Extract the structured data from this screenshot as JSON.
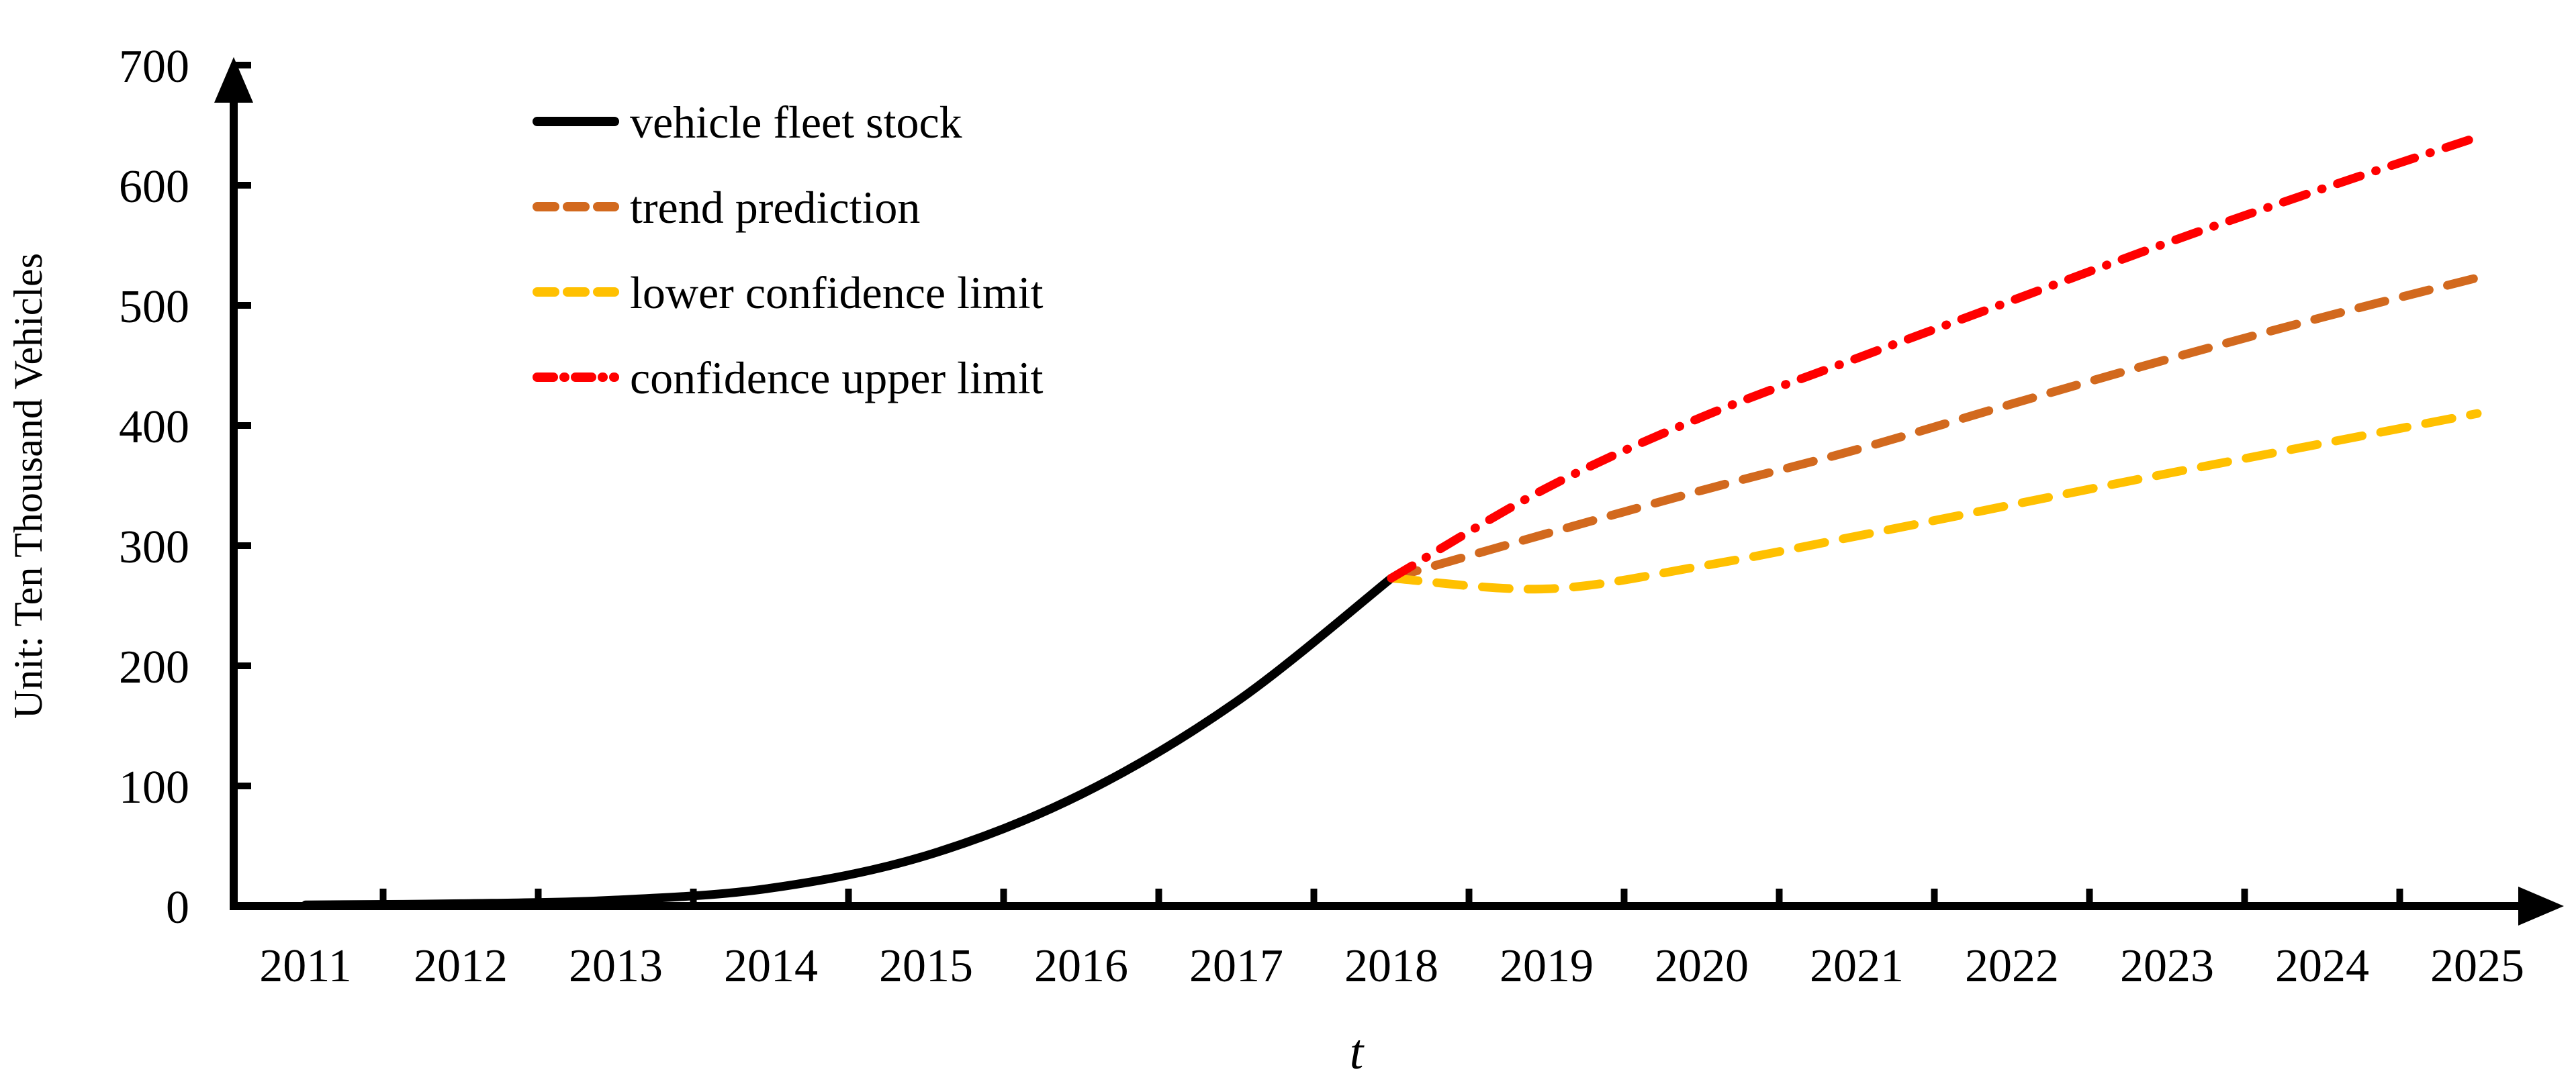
{
  "page": {
    "background_color": "#ffffff"
  },
  "chart_data": {
    "type": "line",
    "title": "",
    "xlabel": "t",
    "ylabel": "Unit:  Ten Thousand Vehicles",
    "x_categories": [
      "2011",
      "2012",
      "2013",
      "2014",
      "2015",
      "2016",
      "2017",
      "2018",
      "2019",
      "2020",
      "2021",
      "2022",
      "2023",
      "2024",
      "2025"
    ],
    "ylim": [
      0,
      700
    ],
    "y_tick_step": 100,
    "y_ticks": [
      0,
      100,
      200,
      300,
      400,
      500,
      600,
      700
    ],
    "grid": false,
    "legend_position": "upper-left-inside",
    "axis_color": "#000000",
    "series": [
      {
        "name": "vehicle fleet stock",
        "color": "#000000",
        "style": "solid",
        "x": [
          2011,
          2012,
          2013,
          2014,
          2015,
          2016,
          2017,
          2018
        ],
        "values": [
          1,
          2,
          5,
          15,
          42,
          93,
          170,
          273
        ]
      },
      {
        "name": "trend prediction",
        "color": "#D2691E",
        "style": "dashed",
        "x": [
          2018,
          2019,
          2020,
          2021,
          2022,
          2023,
          2024,
          2025
        ],
        "values": [
          273,
          310,
          346,
          380,
          418,
          455,
          490,
          523
        ]
      },
      {
        "name": "lower confidence limit",
        "color": "#FFC000",
        "style": "dashed",
        "x": [
          2018,
          2019,
          2020,
          2021,
          2022,
          2023,
          2024,
          2025
        ],
        "values": [
          273,
          264,
          283,
          308,
          334,
          360,
          385,
          410
        ]
      },
      {
        "name": "confidence upper limit",
        "color": "#FF0000",
        "style": "dash-dot",
        "x": [
          2018,
          2019,
          2020,
          2021,
          2022,
          2023,
          2024,
          2025
        ],
        "values": [
          273,
          348,
          407,
          456,
          504,
          552,
          597,
          640
        ]
      }
    ]
  }
}
